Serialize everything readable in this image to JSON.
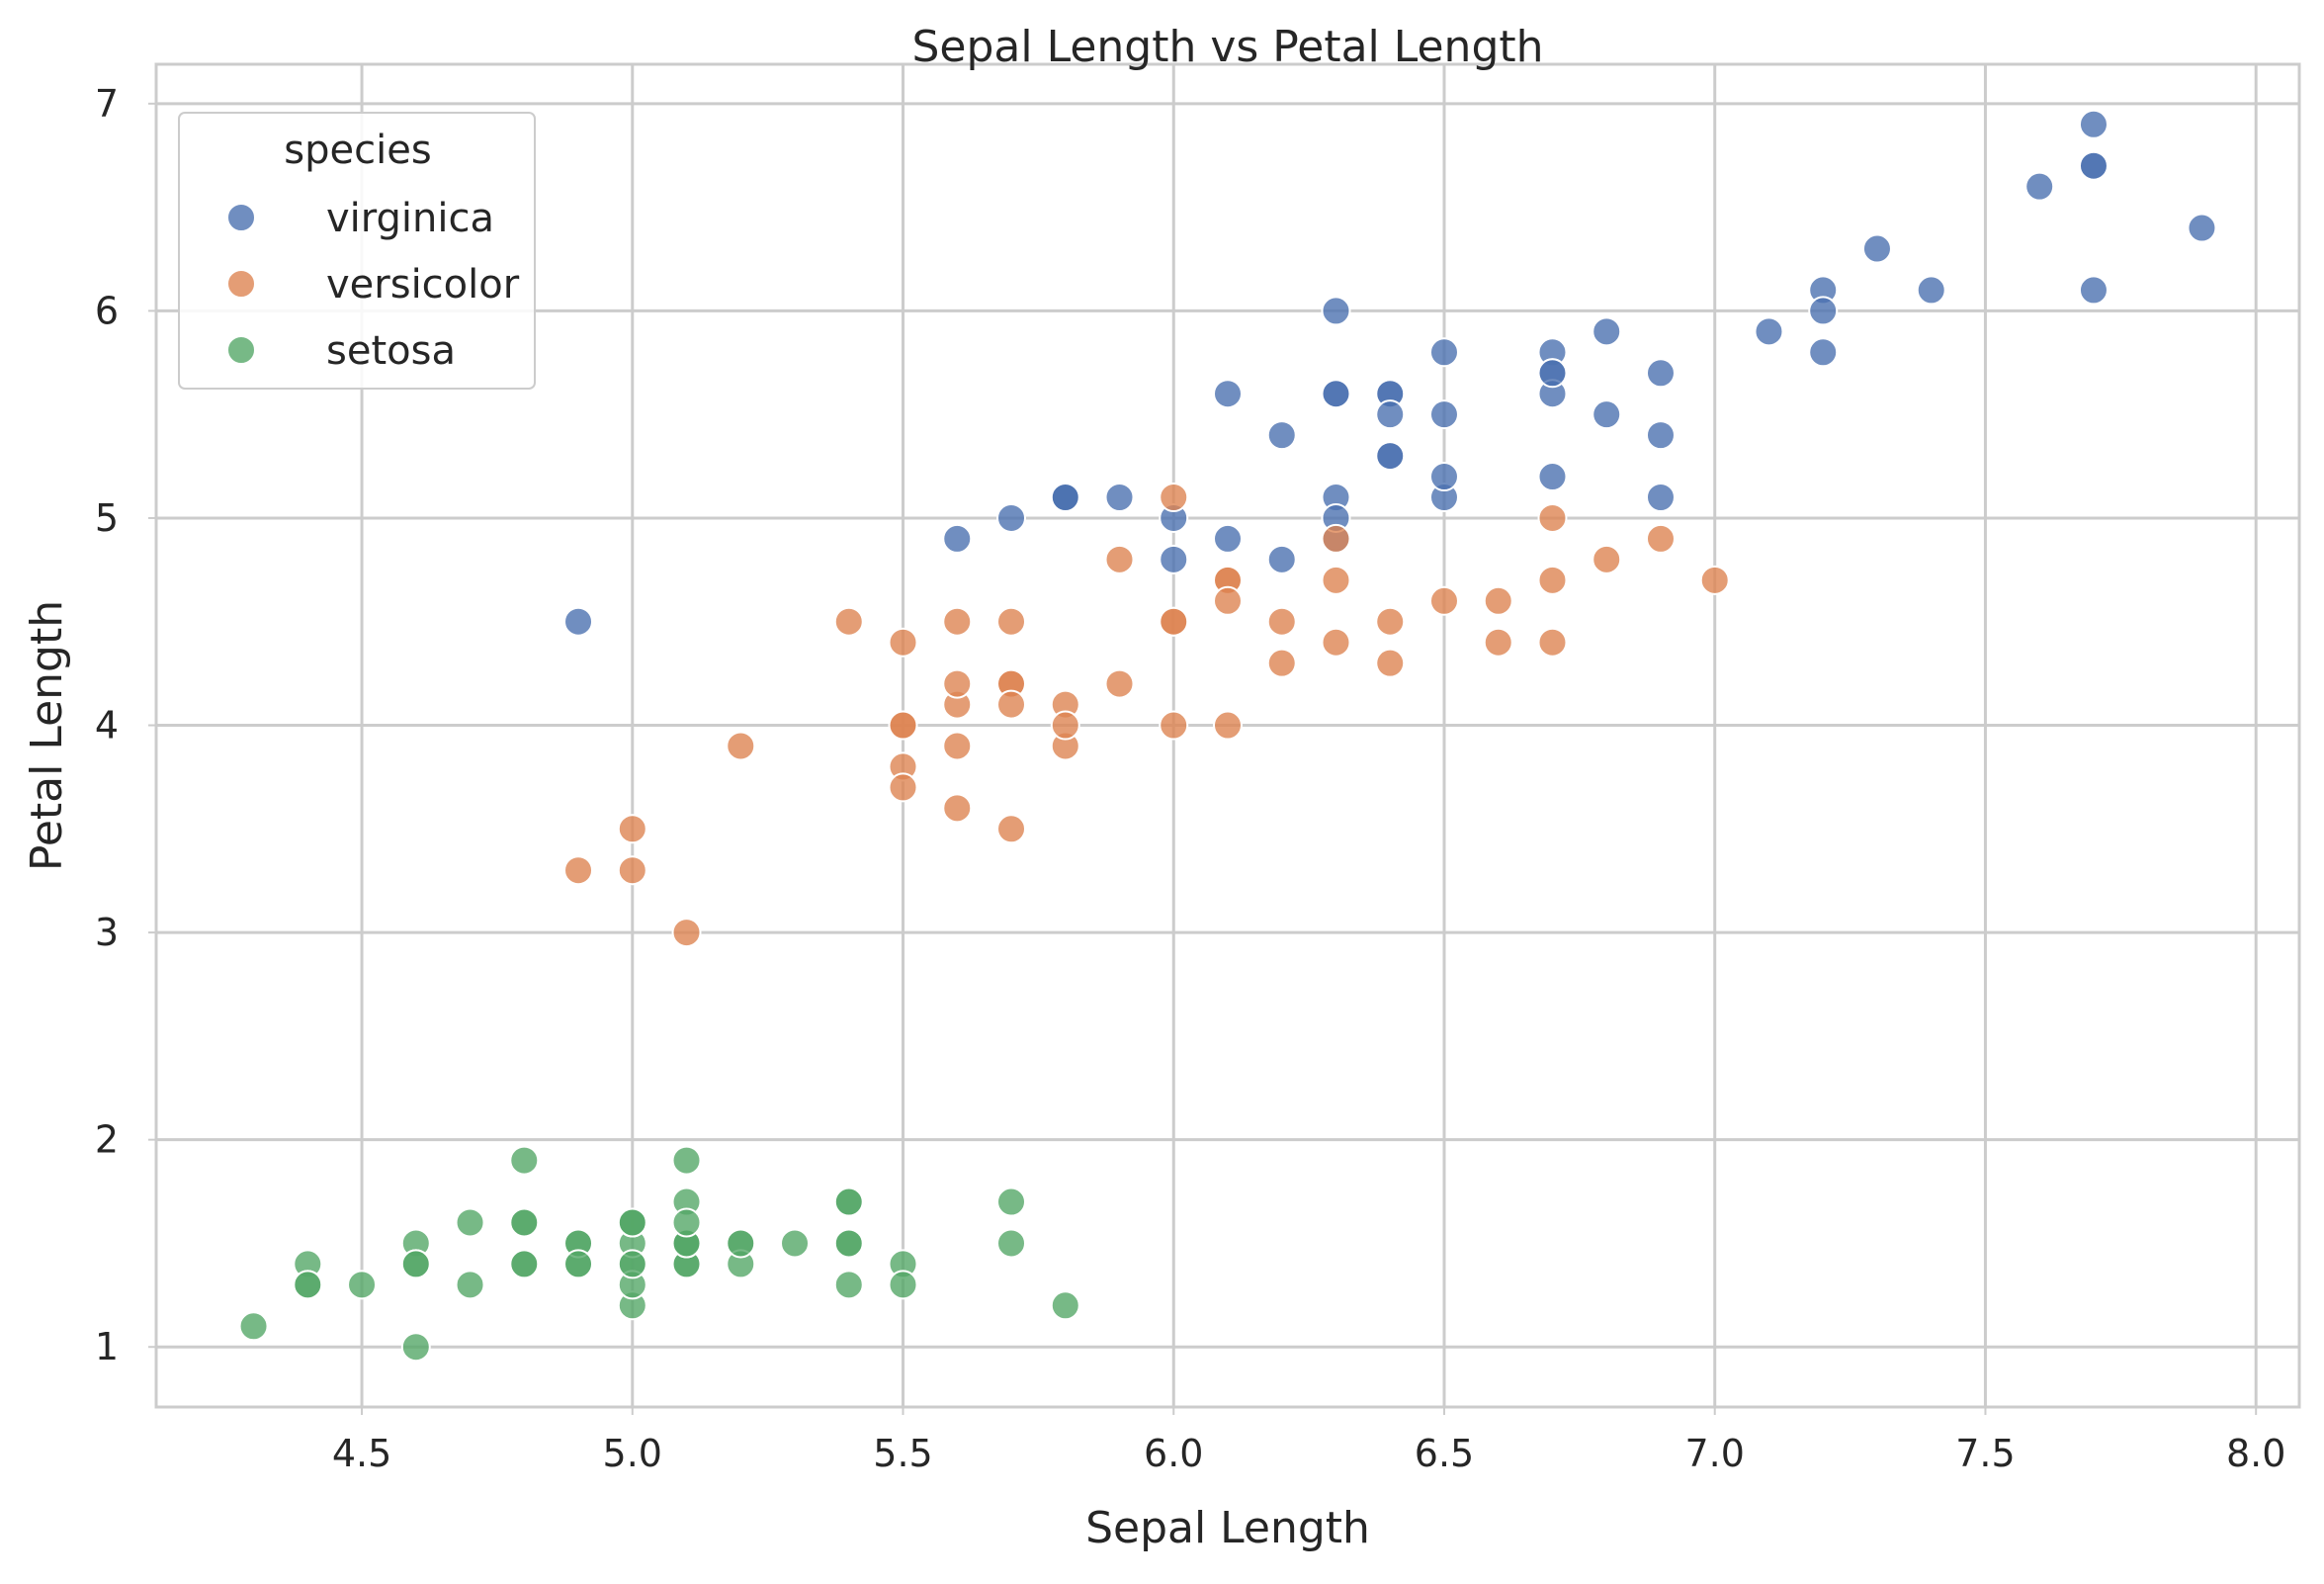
{
  "chart_data": {
    "type": "scatter",
    "title": "Sepal Length vs Petal Length",
    "xlabel": "Sepal Length",
    "ylabel": "Petal Length",
    "xlim": [
      4.12,
      8.08
    ],
    "ylim": [
      0.71,
      7.19
    ],
    "x_ticks": [
      4.5,
      5.0,
      5.5,
      6.0,
      6.5,
      7.0,
      7.5,
      8.0
    ],
    "x_tick_labels": [
      "4.5",
      "5.0",
      "5.5",
      "6.0",
      "6.5",
      "7.0",
      "7.5",
      "8.0"
    ],
    "y_ticks": [
      1,
      2,
      3,
      4,
      5,
      6,
      7
    ],
    "y_tick_labels": [
      "1",
      "2",
      "3",
      "4",
      "5",
      "6",
      "7"
    ],
    "grid": true,
    "legend": {
      "title": "species",
      "position": "top-left"
    },
    "series": [
      {
        "name": "virginica",
        "color": "#4c72b0",
        "points": [
          [
            6.3,
            6.0
          ],
          [
            5.8,
            5.1
          ],
          [
            7.1,
            5.9
          ],
          [
            6.3,
            5.6
          ],
          [
            6.5,
            5.8
          ],
          [
            7.6,
            6.6
          ],
          [
            4.9,
            4.5
          ],
          [
            7.3,
            6.3
          ],
          [
            6.7,
            5.8
          ],
          [
            7.2,
            6.1
          ],
          [
            6.5,
            5.1
          ],
          [
            6.4,
            5.3
          ],
          [
            6.8,
            5.5
          ],
          [
            5.7,
            5.0
          ],
          [
            5.8,
            5.1
          ],
          [
            6.4,
            5.3
          ],
          [
            6.5,
            5.5
          ],
          [
            7.7,
            6.7
          ],
          [
            7.7,
            6.9
          ],
          [
            6.0,
            5.0
          ],
          [
            6.9,
            5.7
          ],
          [
            5.6,
            4.9
          ],
          [
            7.7,
            6.7
          ],
          [
            6.3,
            4.9
          ],
          [
            6.7,
            5.7
          ],
          [
            7.2,
            6.0
          ],
          [
            6.2,
            4.8
          ],
          [
            6.1,
            4.9
          ],
          [
            6.4,
            5.6
          ],
          [
            7.2,
            5.8
          ],
          [
            7.4,
            6.1
          ],
          [
            7.9,
            6.4
          ],
          [
            6.4,
            5.6
          ],
          [
            6.3,
            5.1
          ],
          [
            6.1,
            5.6
          ],
          [
            7.7,
            6.1
          ],
          [
            6.3,
            5.6
          ],
          [
            6.4,
            5.5
          ],
          [
            6.0,
            4.8
          ],
          [
            6.9,
            5.4
          ],
          [
            6.7,
            5.6
          ],
          [
            6.9,
            5.1
          ],
          [
            5.8,
            5.1
          ],
          [
            6.8,
            5.9
          ],
          [
            6.7,
            5.7
          ],
          [
            6.7,
            5.2
          ],
          [
            6.3,
            5.0
          ],
          [
            6.5,
            5.2
          ],
          [
            6.2,
            5.4
          ],
          [
            5.9,
            5.1
          ]
        ]
      },
      {
        "name": "versicolor",
        "color": "#dd8452",
        "points": [
          [
            7.0,
            4.7
          ],
          [
            6.4,
            4.5
          ],
          [
            6.9,
            4.9
          ],
          [
            5.5,
            4.0
          ],
          [
            6.5,
            4.6
          ],
          [
            5.7,
            4.5
          ],
          [
            6.3,
            4.7
          ],
          [
            4.9,
            3.3
          ],
          [
            6.6,
            4.6
          ],
          [
            5.2,
            3.9
          ],
          [
            5.0,
            3.5
          ],
          [
            5.9,
            4.2
          ],
          [
            6.0,
            4.0
          ],
          [
            6.1,
            4.7
          ],
          [
            5.6,
            3.6
          ],
          [
            6.7,
            4.4
          ],
          [
            5.6,
            4.5
          ],
          [
            5.8,
            4.1
          ],
          [
            6.2,
            4.5
          ],
          [
            5.6,
            3.9
          ],
          [
            5.9,
            4.8
          ],
          [
            6.1,
            4.0
          ],
          [
            6.3,
            4.9
          ],
          [
            6.1,
            4.7
          ],
          [
            6.4,
            4.3
          ],
          [
            6.6,
            4.4
          ],
          [
            6.8,
            4.8
          ],
          [
            6.7,
            5.0
          ],
          [
            6.0,
            4.5
          ],
          [
            5.7,
            3.5
          ],
          [
            5.5,
            3.8
          ],
          [
            5.5,
            3.7
          ],
          [
            5.8,
            3.9
          ],
          [
            6.0,
            5.1
          ],
          [
            5.4,
            4.5
          ],
          [
            6.0,
            4.5
          ],
          [
            6.7,
            4.7
          ],
          [
            6.3,
            4.4
          ],
          [
            5.6,
            4.1
          ],
          [
            5.5,
            4.0
          ],
          [
            5.5,
            4.4
          ],
          [
            6.1,
            4.6
          ],
          [
            5.8,
            4.0
          ],
          [
            5.0,
            3.3
          ],
          [
            5.6,
            4.2
          ],
          [
            5.7,
            4.2
          ],
          [
            5.7,
            4.2
          ],
          [
            6.2,
            4.3
          ],
          [
            5.1,
            3.0
          ],
          [
            5.7,
            4.1
          ]
        ]
      },
      {
        "name": "setosa",
        "color": "#55a868",
        "points": [
          [
            5.1,
            1.4
          ],
          [
            4.9,
            1.4
          ],
          [
            4.7,
            1.3
          ],
          [
            4.6,
            1.5
          ],
          [
            5.0,
            1.4
          ],
          [
            5.4,
            1.7
          ],
          [
            4.6,
            1.4
          ],
          [
            5.0,
            1.5
          ],
          [
            4.4,
            1.4
          ],
          [
            4.9,
            1.5
          ],
          [
            5.4,
            1.5
          ],
          [
            4.8,
            1.6
          ],
          [
            4.8,
            1.4
          ],
          [
            4.3,
            1.1
          ],
          [
            5.8,
            1.2
          ],
          [
            5.7,
            1.5
          ],
          [
            5.4,
            1.3
          ],
          [
            5.1,
            1.4
          ],
          [
            5.7,
            1.7
          ],
          [
            5.1,
            1.5
          ],
          [
            5.4,
            1.7
          ],
          [
            5.1,
            1.5
          ],
          [
            4.6,
            1.0
          ],
          [
            5.1,
            1.7
          ],
          [
            4.8,
            1.9
          ],
          [
            5.0,
            1.6
          ],
          [
            5.0,
            1.6
          ],
          [
            5.2,
            1.5
          ],
          [
            5.2,
            1.4
          ],
          [
            4.7,
            1.6
          ],
          [
            4.8,
            1.6
          ],
          [
            5.4,
            1.5
          ],
          [
            5.2,
            1.5
          ],
          [
            5.5,
            1.4
          ],
          [
            4.9,
            1.5
          ],
          [
            5.0,
            1.2
          ],
          [
            5.5,
            1.3
          ],
          [
            4.9,
            1.4
          ],
          [
            4.4,
            1.3
          ],
          [
            5.1,
            1.5
          ],
          [
            5.0,
            1.3
          ],
          [
            4.5,
            1.3
          ],
          [
            4.4,
            1.3
          ],
          [
            5.0,
            1.6
          ],
          [
            5.1,
            1.9
          ],
          [
            4.8,
            1.4
          ],
          [
            5.1,
            1.6
          ],
          [
            4.6,
            1.4
          ],
          [
            5.3,
            1.5
          ],
          [
            5.0,
            1.4
          ]
        ]
      }
    ]
  }
}
